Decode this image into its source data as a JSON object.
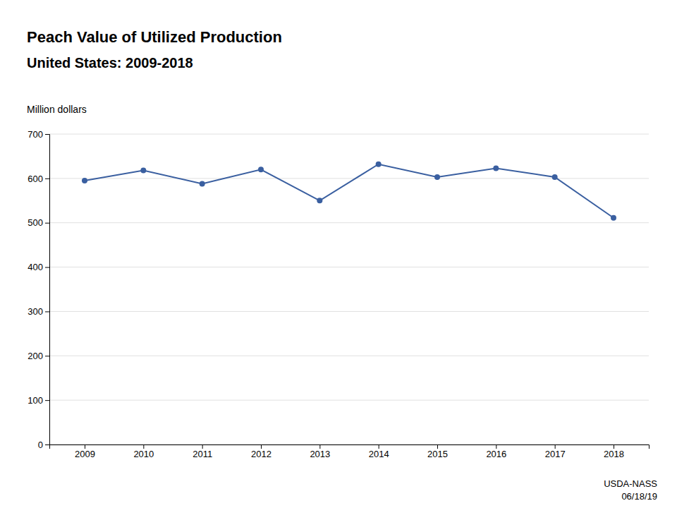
{
  "chart_data": {
    "type": "line",
    "title": "Peach Value of Utilized Production",
    "subtitle": "United States:  2009-2018",
    "y_label": "Million dollars",
    "x": [
      2009,
      2010,
      2011,
      2012,
      2013,
      2014,
      2015,
      2016,
      2017,
      2018
    ],
    "values": [
      595,
      618,
      588,
      620,
      550,
      632,
      603,
      623,
      603,
      511
    ],
    "color": "#3A5FA0",
    "marker": "circle",
    "xlim": [
      2008.4,
      2018.6
    ],
    "xticks": [
      2009,
      2010,
      2011,
      2012,
      2013,
      2014,
      2015,
      2016,
      2017,
      2018
    ],
    "ylim": [
      0,
      700
    ],
    "yticks": [
      0,
      100,
      200,
      300,
      400,
      500,
      600,
      700
    ],
    "grid": true,
    "annotations": [
      "USDA-NASS\n06/18/19"
    ]
  }
}
